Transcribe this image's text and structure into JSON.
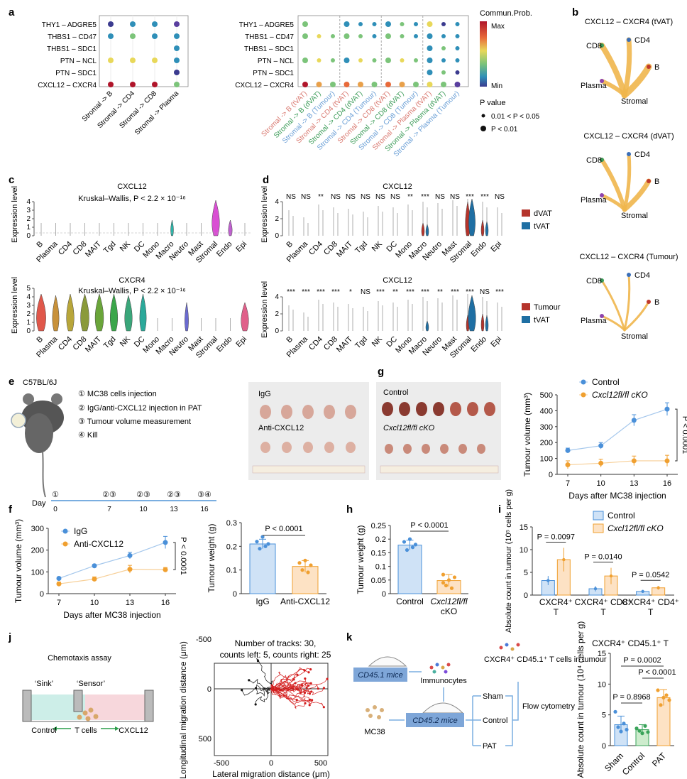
{
  "panels": {
    "a": {
      "label": "a",
      "left": {
        "rows": [
          "THY1 – ADGRE5",
          "THBS1 – CD47",
          "THBS1 – SDC1",
          "PTN – NCL",
          "PTN – SDC1",
          "CXCL12 – CXCR4"
        ],
        "cols": [
          "Stromal -> B",
          "Stromal -> CD4",
          "Stromal -> CD8",
          "Stromal -> Plasma"
        ]
      },
      "right": {
        "cols": [
          "Stromal -> B (tVAT)",
          "Stromal -> B (dVAT)",
          "Stromal -> B (Tumour)",
          "Stromal -> CD4 (tVAT)",
          "Stromal -> CD4 (dVAT)",
          "Stromal -> CD4 (Tumour)",
          "Stromal -> CD8 (tVAT)",
          "Stromal -> CD8 (dVAT)",
          "Stromal -> CD8 (Tumour)",
          "Stromal -> Plasma (tVAT)",
          "Stromal -> Plasma (dVAT)",
          "Stromal -> Plasma (Tumour)"
        ]
      },
      "legend_title": "Commun.Prob.",
      "legend_max": "Max",
      "legend_min": "Min",
      "pvalue_title": "P value",
      "pvalue_1": "0.01 < P < 0.05",
      "pvalue_2": "P < 0.01"
    },
    "b": {
      "label": "b",
      "networks": [
        {
          "title": "CXCL12 – CXCR4 (tVAT)"
        },
        {
          "title": "CXCL12 – CXCR4 (dVAT)"
        },
        {
          "title": "CXCL12 – CXCR4 (Tumour)"
        }
      ],
      "nodes": [
        "CD8",
        "CD4",
        "B",
        "Plasma",
        "Stromal"
      ]
    },
    "c": {
      "label": "c",
      "cells": [
        "B",
        "Plasma",
        "CD4",
        "CD8",
        "MAIT",
        "Tgd",
        "NK",
        "DC",
        "Mono",
        "Macro",
        "Neutro",
        "Mast",
        "Stromal",
        "Endo",
        "Epi"
      ],
      "ylabel": "Expression level",
      "top_title": "CXCL12",
      "top_stat": "Kruskal–Wallis, P < 2.2 × 10⁻¹⁶",
      "bottom_title": "CXCR4",
      "bottom_stat": "Kruskal–Wallis, P < 2.2 × 10⁻¹⁶"
    },
    "d": {
      "label": "d",
      "top_title": "CXCL12",
      "bottom_title": "CXCL12",
      "top_sig": [
        "NS",
        "NS",
        "**",
        "NS",
        "NS",
        "NS",
        "NS",
        "NS",
        "**",
        "***",
        "NS",
        "NS",
        "***",
        "***",
        "NS"
      ],
      "bottom_sig": [
        "***",
        "***",
        "***",
        "***",
        "*",
        "NS",
        "***",
        "**",
        "***",
        "***",
        "**",
        "***",
        "***",
        "NS",
        "***"
      ],
      "top_legend": [
        "dVAT",
        "tVAT"
      ],
      "bottom_legend": [
        "Tumour",
        "tVAT"
      ],
      "legend_colors": {
        "dVAT": "#b5342c",
        "tVAT": "#1f6fa3",
        "Tumour": "#b5342c"
      }
    },
    "e": {
      "label": "e",
      "strain": "C57BL/6J",
      "steps": [
        "① MC38 cells injection",
        "② IgG/anti-CXCL12 injection in PAT",
        "③ Tumour volume measurement",
        "④ Kill"
      ],
      "timeline_label": "Day",
      "timeline_days": [
        "0",
        "7",
        "10",
        "13",
        "16"
      ],
      "timeline_marks": [
        "①",
        "②③",
        "②③",
        "②③",
        "③④"
      ],
      "photo_labels": [
        "IgG",
        "Anti-CXCL12"
      ]
    },
    "g": {
      "label": "g",
      "photo_labels": [
        "Control",
        "Cxcl12fl/fl cKO"
      ],
      "chart": {
        "title": "",
        "ylabel": "Tumour volume (mm³)",
        "xlabel": "Days after MC38 injection",
        "legend": [
          "Control",
          "Cxcl12fl/fl cKO"
        ],
        "pval": "P < 0.0001"
      }
    },
    "f": {
      "label": "f",
      "line": {
        "ylabel": "Tumour volume (mm³)",
        "xlabel": "Days after MC38 injection",
        "legend": [
          "IgG",
          "Anti-CXCL12"
        ],
        "pval": "P < 0.0001"
      },
      "bar": {
        "ylabel": "Tumour weight (g)",
        "pval": "P < 0.0001",
        "categories": [
          "IgG",
          "Anti-CXCL12"
        ]
      }
    },
    "h": {
      "label": "h",
      "ylabel": "Tumour weight (g)",
      "pval": "P < 0.0001",
      "categories": [
        "Control",
        "Cxcl12fl/fl cKO"
      ]
    },
    "i": {
      "label": "i",
      "ylabel": "Absolute count in tumour (10⁵ cells per g)",
      "legend": [
        "Control",
        "Cxcl12fl/fl cKO"
      ],
      "groups": [
        "CXCR4⁺ T",
        "CXCR4⁺ CD8⁺ T",
        "CXCR4⁺ CD4⁺ T"
      ],
      "pvals": [
        "P = 0.0097",
        "P = 0.0140",
        "P = 0.0542"
      ]
    },
    "j": {
      "label": "j",
      "assay_title": "Chemotaxis assay",
      "sink": "‘Sink’",
      "sensor": "‘Sensor’",
      "bottom_labels": [
        "Control",
        "T cells",
        "CXCL12"
      ],
      "track_title_1": "Number of tracks: 30,",
      "track_title_2": "counts left: 5, counts right: 25",
      "xlabel": "Lateral migration distance (μm)",
      "ylabel": "Longitudinal migration distance (μm)"
    },
    "k": {
      "label": "k",
      "mice1": "CD45.1 mice",
      "mice2": "CD45.2 mice",
      "immunocytes": "Immunocytes",
      "mc38": "MC38",
      "tcells": "CXCR4⁺ CD45.1⁺ T cells in tumour",
      "groups": [
        "Sham",
        "Control",
        "PAT"
      ],
      "flow": "Flow cytometry",
      "chart": {
        "title": "CXCR4⁺ CD45.1⁺ T",
        "ylabel": "Absolute count in tumour (10⁴ cells per g)",
        "pvals": [
          "P = 0.8968",
          "P < 0.0001",
          "P = 0.0002"
        ],
        "categories": [
          "Sham",
          "Control",
          "PAT"
        ]
      }
    }
  },
  "chart_data": [
    {
      "type": "line",
      "panel": "g",
      "x": [
        7,
        10,
        13,
        16
      ],
      "series": [
        {
          "name": "Control",
          "values": [
            150,
            180,
            340,
            410
          ],
          "err": [
            15,
            20,
            35,
            40
          ]
        },
        {
          "name": "Cxcl12fl/fl cKO",
          "values": [
            60,
            70,
            85,
            85
          ],
          "err": [
            25,
            25,
            30,
            35
          ]
        }
      ],
      "xlabel": "Days after MC38 injection",
      "ylabel": "Tumour volume (mm³)",
      "ylim": [
        0,
        500
      ],
      "yticks": [
        0,
        100,
        200,
        300,
        400,
        500
      ],
      "colors": {
        "Control": "#4a90d9",
        "Cxcl12fl/fl cKO": "#f0a030"
      }
    },
    {
      "type": "line",
      "panel": "f",
      "x": [
        7,
        10,
        13,
        16
      ],
      "series": [
        {
          "name": "IgG",
          "values": [
            70,
            128,
            175,
            235
          ],
          "err": [
            6,
            6,
            15,
            28
          ]
        },
        {
          "name": "Anti-CXCL12",
          "values": [
            45,
            67,
            112,
            110
          ],
          "err": [
            8,
            10,
            18,
            10
          ]
        }
      ],
      "xlabel": "Days after MC38 injection",
      "ylabel": "Tumour volume (mm³)",
      "ylim": [
        0,
        300
      ],
      "yticks": [
        0,
        100,
        200,
        300
      ],
      "colors": {
        "IgG": "#4a90d9",
        "Anti-CXCL12": "#f0a030"
      }
    },
    {
      "type": "bar",
      "panel": "f",
      "categories": [
        "IgG",
        "Anti-CXCL12"
      ],
      "values": [
        0.21,
        0.115
      ],
      "err": [
        0.02,
        0.025
      ],
      "points": [
        [
          0.22,
          0.19,
          0.24,
          0.2,
          0.21
        ],
        [
          0.13,
          0.1,
          0.14,
          0.09,
          0.12
        ]
      ],
      "ylabel": "Tumour weight (g)",
      "ylim": [
        0,
        0.3
      ],
      "yticks": [
        0,
        0.1,
        0.2,
        0.3
      ]
    },
    {
      "type": "bar",
      "panel": "h",
      "categories": [
        "Control",
        "Cxcl12fl/fl cKO"
      ],
      "values": [
        0.178,
        0.048
      ],
      "err": [
        0.018,
        0.022
      ],
      "points": [
        [
          0.19,
          0.16,
          0.2,
          0.17,
          0.18
        ],
        [
          0.07,
          0.03,
          0.05,
          0.02,
          0.06,
          0.04
        ]
      ],
      "ylabel": "Tumour weight (g)",
      "ylim": [
        0,
        0.25
      ],
      "yticks": [
        0,
        0.05,
        0.1,
        0.15,
        0.2,
        0.25
      ]
    },
    {
      "type": "bar",
      "panel": "i",
      "categories": [
        "CXCR4⁺ T",
        "CXCR4⁺ CD8⁺ T",
        "CXCR4⁺ CD4⁺ T"
      ],
      "series": [
        {
          "name": "Control",
          "values": [
            3.2,
            1.4,
            0.8
          ],
          "err": [
            1.0,
            0.6,
            0.3
          ]
        },
        {
          "name": "Cxcl12fl/fl cKO",
          "values": [
            7.8,
            4.2,
            1.6
          ],
          "err": [
            2.6,
            1.8,
            0.4
          ]
        }
      ],
      "ylabel": "Absolute count in tumour (10⁵ cells per g)",
      "ylim": [
        0,
        15
      ],
      "yticks": [
        0,
        5,
        10,
        15
      ]
    },
    {
      "type": "bar",
      "panel": "k",
      "categories": [
        "Sham",
        "Control",
        "PAT"
      ],
      "values": [
        3.4,
        2.6,
        7.8
      ],
      "err": [
        1.4,
        0.8,
        1.3
      ],
      "points": [
        [
          5.5,
          3.0,
          2.3,
          3.6,
          2.6
        ],
        [
          2.8,
          2.4,
          2.0,
          3.2,
          2.2
        ],
        [
          9.0,
          6.6,
          7.8,
          8.2,
          7.4
        ]
      ],
      "ylabel": "Absolute count in tumour (10⁴ cells per g)",
      "ylim": [
        0,
        15
      ],
      "yticks": [
        0,
        5,
        10,
        15
      ]
    }
  ]
}
